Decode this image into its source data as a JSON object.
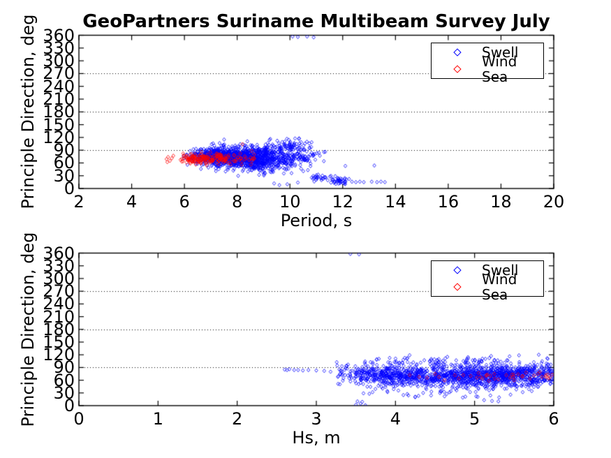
{
  "figure": {
    "background": "#ffffff",
    "axis_color": "#000000",
    "text_color": "#000000"
  },
  "chart_data": [
    {
      "type": "scatter",
      "title": "GeoPartners Suriname Multibeam Survey July",
      "xlabel": "Period, s",
      "ylabel": "Principle Direction, deg",
      "xlim": [
        2,
        20
      ],
      "ylim": [
        0,
        360
      ],
      "xticks": [
        2,
        4,
        6,
        8,
        10,
        12,
        14,
        16,
        18,
        20
      ],
      "yticks": [
        0,
        30,
        60,
        90,
        120,
        150,
        180,
        210,
        240,
        270,
        300,
        330,
        360
      ],
      "grid_y": [
        90,
        180,
        270
      ],
      "grid_style": "dotted",
      "legend": {
        "entries": [
          "Swell",
          "Wind Sea"
        ],
        "position": "upper right"
      },
      "representation": "dense point clouds parameterized as gaussian clusters plus explicit outlier points",
      "series": [
        {
          "name": "Swell",
          "color": "#0000ff",
          "marker": "diamond",
          "clusters": [
            {
              "n": 420,
              "cx": 7.25,
              "cy": 76,
              "sx": 0.5,
              "sy": 9,
              "xmin": 5.95,
              "xmax": 11.4,
              "ymin": 28,
              "ymax": 122
            },
            {
              "n": 620,
              "cx": 8.3,
              "cy": 72,
              "sx": 0.75,
              "sy": 14,
              "xmin": 5.95,
              "xmax": 11.4,
              "ymin": 28,
              "ymax": 122
            },
            {
              "n": 300,
              "cx": 9.2,
              "cy": 68,
              "sx": 0.55,
              "sy": 17,
              "xmin": 6.2,
              "xmax": 11.4,
              "ymin": 25,
              "ymax": 122
            },
            {
              "n": 80,
              "cx": 10.5,
              "cy": 75,
              "sx": 0.45,
              "sy": 12,
              "xmin": 9.5,
              "xmax": 11.45,
              "ymin": 30,
              "ymax": 100
            },
            {
              "n": 55,
              "cx": 10.05,
              "cy": 102,
              "sx": 0.4,
              "sy": 7,
              "xmin": 9.2,
              "xmax": 10.9,
              "ymin": 88,
              "ymax": 122
            },
            {
              "n": 25,
              "cx": 11.2,
              "cy": 26,
              "sx": 0.3,
              "sy": 5,
              "xmin": 10.6,
              "xmax": 11.6,
              "ymin": 12,
              "ymax": 40
            },
            {
              "n": 40,
              "cx": 11.85,
              "cy": 18,
              "sx": 0.28,
              "sy": 4,
              "xmin": 11.5,
              "xmax": 12.25,
              "ymin": 10,
              "ymax": 30
            }
          ],
          "points": [
            [
              12.35,
              16
            ],
            [
              12.5,
              15
            ],
            [
              12.65,
              16
            ],
            [
              12.8,
              15
            ],
            [
              13.1,
              16
            ],
            [
              13.3,
              15
            ],
            [
              13.45,
              16
            ],
            [
              13.6,
              15
            ],
            [
              12.1,
              53
            ],
            [
              13.2,
              54
            ],
            [
              10.1,
              357
            ],
            [
              10.3,
              356
            ],
            [
              10.65,
              357
            ],
            [
              10.9,
              355
            ],
            [
              9.4,
              12
            ],
            [
              9.6,
              8
            ],
            [
              9.9,
              10
            ],
            [
              10.3,
              14
            ]
          ]
        },
        {
          "name": "Wind Sea",
          "color": "#ff0000",
          "marker": "diamond",
          "clusters": [
            {
              "n": 150,
              "cx": 7.15,
              "cy": 70,
              "sx": 0.62,
              "sy": 6.5,
              "xmin": 5.9,
              "xmax": 8.75,
              "ymin": 52,
              "ymax": 92
            },
            {
              "n": 45,
              "cx": 6.3,
              "cy": 71,
              "sx": 0.3,
              "sy": 7,
              "xmin": 5.8,
              "xmax": 7.0,
              "ymin": 52,
              "ymax": 92
            }
          ],
          "points": [
            [
              5.32,
              69
            ],
            [
              5.38,
              74
            ],
            [
              5.45,
              65
            ],
            [
              5.52,
              71
            ],
            [
              5.58,
              77
            ],
            [
              5.35,
              62
            ],
            [
              8.2,
              104
            ],
            [
              8.55,
              88
            ],
            [
              8.65,
              80
            ]
          ]
        }
      ]
    },
    {
      "type": "scatter",
      "title": "",
      "xlabel": "Hs, m",
      "ylabel": "Principle Direction, deg",
      "xlim": [
        0,
        6
      ],
      "ylim": [
        0,
        360
      ],
      "xticks": [
        0,
        1,
        2,
        3,
        4,
        5,
        6
      ],
      "yticks": [
        0,
        30,
        60,
        90,
        120,
        150,
        180,
        210,
        240,
        270,
        300,
        330,
        360
      ],
      "grid_y": [
        90,
        180,
        270
      ],
      "grid_style": "dotted",
      "legend": {
        "entries": [
          "Swell",
          "Wind Sea"
        ],
        "position": "upper right"
      },
      "representation": "dense point clouds parameterized as gaussian clusters plus explicit outlier points",
      "series": [
        {
          "name": "Swell",
          "color": "#0000ff",
          "marker": "diamond",
          "clusters": [
            {
              "n": 680,
              "cx": 4.65,
              "cy": 70,
              "sx": 0.78,
              "sy": 13,
              "xmin": 3.25,
              "xmax": 6.03,
              "ymin": 38,
              "ymax": 118
            },
            {
              "n": 560,
              "cx": 5.45,
              "cy": 71,
              "sx": 0.5,
              "sy": 13,
              "xmin": 3.25,
              "xmax": 6.03,
              "ymin": 38,
              "ymax": 118
            },
            {
              "n": 260,
              "cx": 3.85,
              "cy": 74,
              "sx": 0.33,
              "sy": 12,
              "xmin": 3.25,
              "xmax": 6.03,
              "ymin": 40,
              "ymax": 115
            },
            {
              "n": 70,
              "cx": 4.9,
              "cy": 106,
              "sx": 0.75,
              "sy": 6,
              "xmin": 3.4,
              "xmax": 6.03,
              "ymin": 96,
              "ymax": 122
            },
            {
              "n": 45,
              "cx": 4.7,
              "cy": 38,
              "sx": 0.65,
              "sy": 9,
              "xmin": 3.5,
              "xmax": 6.0,
              "ymin": 14,
              "ymax": 50
            }
          ],
          "points": [
            [
              2.6,
              85
            ],
            [
              2.63,
              84
            ],
            [
              2.66,
              86
            ],
            [
              2.72,
              84
            ],
            [
              2.77,
              84
            ],
            [
              2.83,
              83
            ],
            [
              2.9,
              84
            ],
            [
              3.0,
              83
            ],
            [
              3.1,
              82
            ],
            [
              3.18,
              80
            ],
            [
              3.43,
              358
            ],
            [
              3.54,
              357
            ],
            [
              3.5,
              2
            ],
            [
              3.56,
              5
            ],
            [
              3.62,
              1
            ],
            [
              3.52,
              10
            ],
            [
              3.58,
              9
            ],
            [
              3.67,
              28
            ],
            [
              4.1,
              25
            ],
            [
              4.25,
              21
            ],
            [
              4.45,
              24
            ],
            [
              4.62,
              22
            ],
            [
              4.85,
              19
            ],
            [
              5.02,
              22
            ],
            [
              3.9,
              32
            ],
            [
              4.7,
              34
            ],
            [
              5.2,
              24
            ],
            [
              4.35,
              30
            ],
            [
              5.12,
              13
            ],
            [
              5.22,
              11
            ],
            [
              5.3,
              10
            ]
          ]
        },
        {
          "name": "Wind Sea",
          "color": "#ff0000",
          "marker": "diamond",
          "clusters": [
            {
              "n": 15,
              "cx": 5.5,
              "cy": 70,
              "sx": 0.4,
              "sy": 5,
              "xmin": 4.6,
              "xmax": 6.02,
              "ymin": 58,
              "ymax": 82
            }
          ],
          "points": [
            [
              4.18,
              72
            ],
            [
              4.3,
              68
            ],
            [
              4.4,
              66
            ],
            [
              4.5,
              75
            ],
            [
              4.55,
              68
            ],
            [
              4.62,
              60
            ],
            [
              4.75,
              72
            ],
            [
              4.8,
              64
            ],
            [
              4.95,
              70
            ],
            [
              5.05,
              77
            ],
            [
              5.1,
              64
            ],
            [
              5.15,
              72
            ],
            [
              5.2,
              70
            ],
            [
              5.25,
              75
            ],
            [
              5.3,
              62
            ],
            [
              5.4,
              72
            ],
            [
              5.45,
              66
            ],
            [
              5.5,
              60
            ],
            [
              5.55,
              74
            ],
            [
              5.6,
              69
            ],
            [
              5.65,
              78
            ],
            [
              5.7,
              64
            ],
            [
              5.75,
              71
            ],
            [
              5.8,
              75
            ],
            [
              5.85,
              68
            ],
            [
              5.9,
              72
            ],
            [
              5.95,
              66
            ],
            [
              5.98,
              73
            ]
          ]
        }
      ]
    }
  ]
}
